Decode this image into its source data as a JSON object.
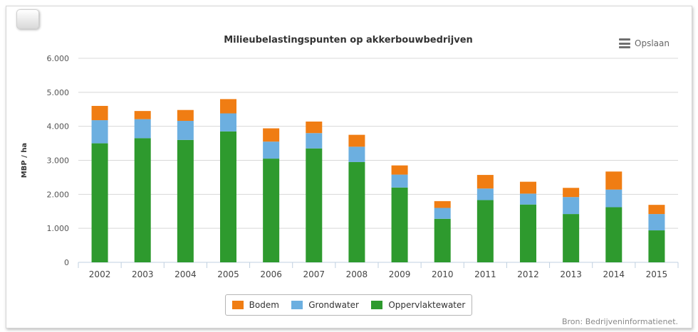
{
  "toolbar": {
    "save_label": "Opslaan",
    "save_icon": "menu-icon"
  },
  "source_text": "Bron: Bedrijveninformatienet.",
  "chart_data": {
    "type": "bar",
    "stacked": true,
    "title": "Milieubelastingspunten op akkerbouwbedrijven",
    "xlabel": "",
    "ylabel": "MBP / ha",
    "ylim": [
      0,
      6000
    ],
    "yticks": [
      0,
      1000,
      2000,
      3000,
      4000,
      5000,
      6000
    ],
    "ytick_labels": [
      "0",
      "1.000",
      "2.000",
      "3.000",
      "4.000",
      "5.000",
      "6.000"
    ],
    "grid": true,
    "legend_position": "bottom-center",
    "categories": [
      "2002",
      "2003",
      "2004",
      "2005",
      "2006",
      "2007",
      "2008",
      "2009",
      "2010",
      "2011",
      "2012",
      "2013",
      "2014",
      "2015"
    ],
    "series": [
      {
        "name": "Oppervlaktewater",
        "color": "#2e9a2e",
        "values": [
          3500,
          3650,
          3600,
          3850,
          3050,
          3350,
          2950,
          2200,
          1280,
          1830,
          1700,
          1420,
          1620,
          940
        ]
      },
      {
        "name": "Grondwater",
        "color": "#6cafe0",
        "values": [
          680,
          560,
          560,
          530,
          500,
          450,
          450,
          380,
          320,
          340,
          320,
          500,
          520,
          480
        ]
      },
      {
        "name": "Bodem",
        "color": "#f07d13",
        "values": [
          420,
          240,
          320,
          420,
          390,
          340,
          350,
          270,
          200,
          400,
          350,
          270,
          530,
          270
        ]
      }
    ],
    "legend_order": [
      "Bodem",
      "Grondwater",
      "Oppervlaktewater"
    ]
  }
}
